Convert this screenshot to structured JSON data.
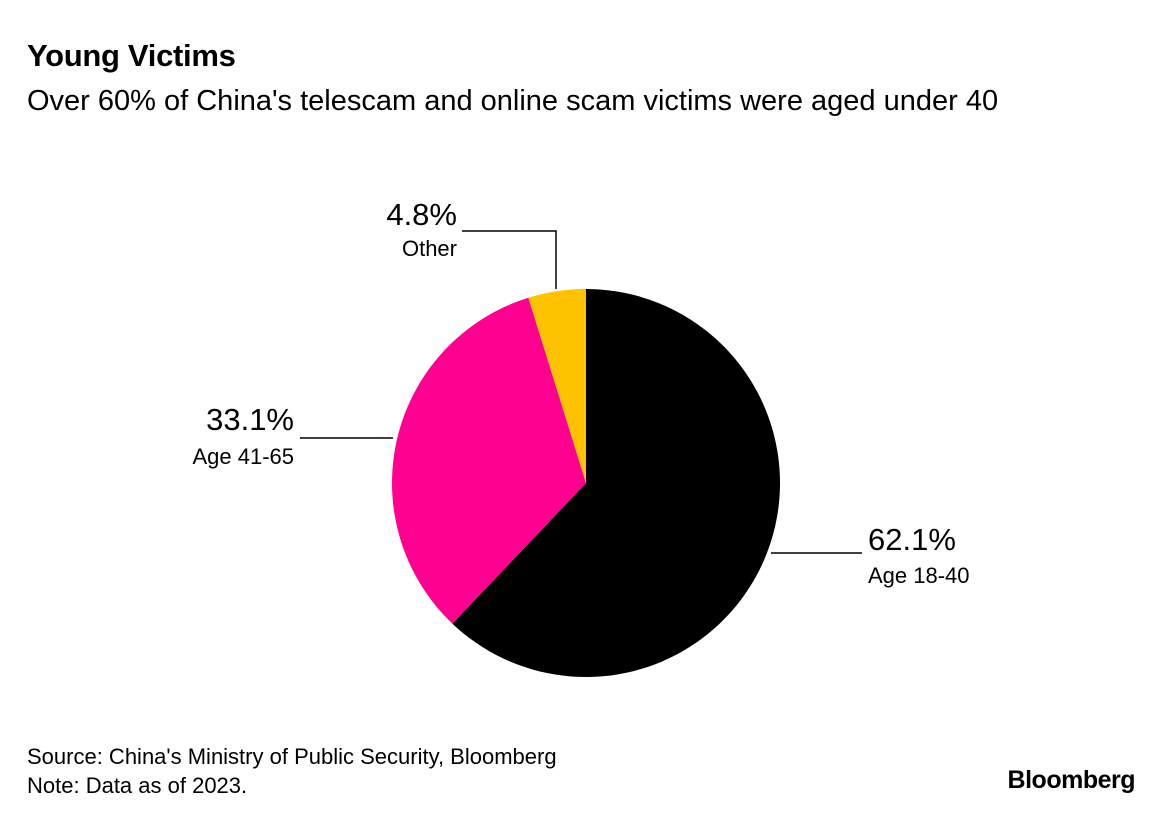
{
  "header": {
    "title": "Young Victims",
    "subtitle": "Over 60% of China's telescam and online scam victims were aged under 40"
  },
  "chart_data": {
    "type": "pie",
    "title": "Young Victims",
    "subtitle": "Over 60% of China's telescam and online scam victims were aged under 40",
    "slices": [
      {
        "label": "Age 18-40",
        "value": 62.1,
        "display": "62.1%",
        "color": "#000000"
      },
      {
        "label": "Age 41-65",
        "value": 33.1,
        "display": "33.1%",
        "color": "#ff0090"
      },
      {
        "label": "Other",
        "value": 4.8,
        "display": "4.8%",
        "color": "#ffc200"
      }
    ],
    "start": "12 o'clock",
    "direction": "clockwise",
    "legend": "none (direct labels with leader lines)"
  },
  "footer": {
    "source": "Source: China's Ministry of Public Security, Bloomberg",
    "note": "Note: Data as of 2023."
  },
  "brand": {
    "logo_text": "Bloomberg"
  }
}
